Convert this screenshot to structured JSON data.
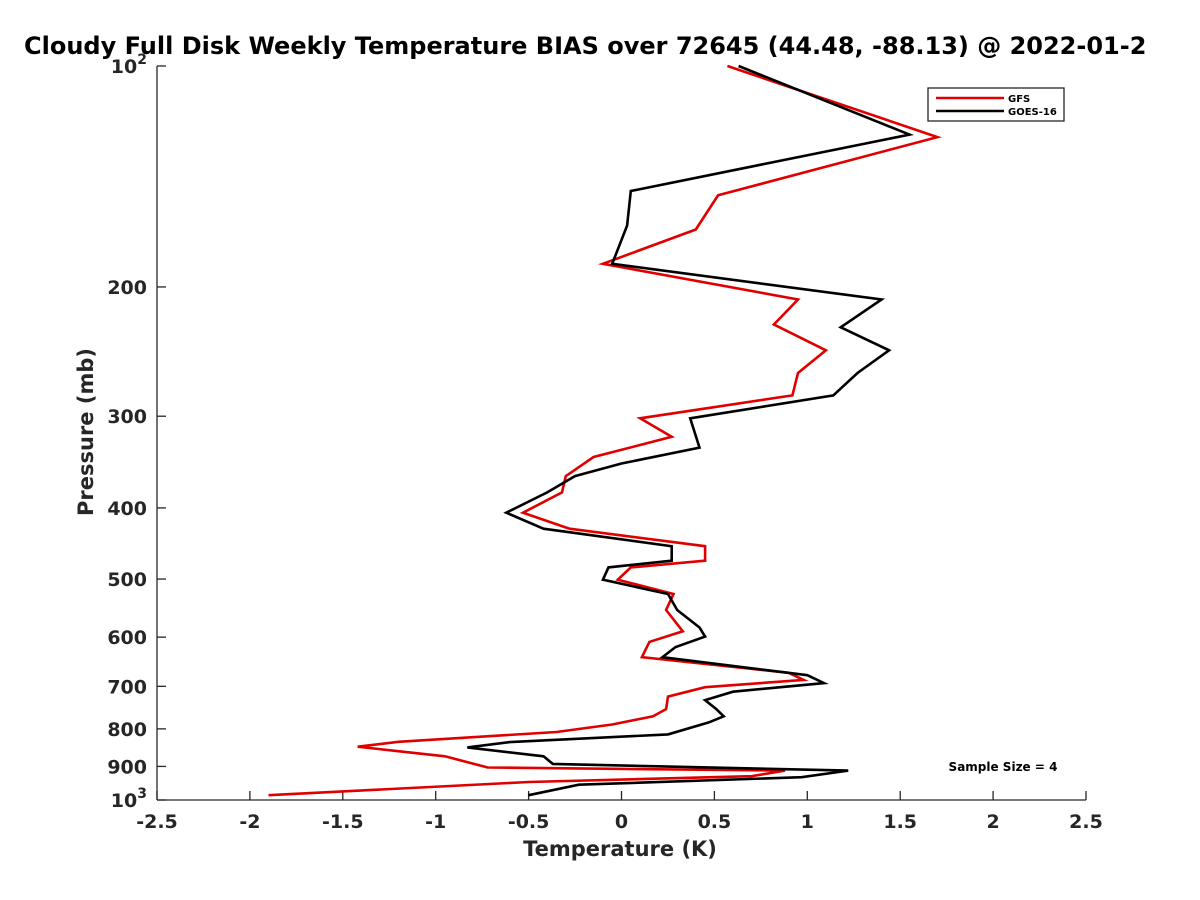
{
  "chart_data": {
    "type": "line",
    "title": "Cloudy Full Disk Weekly Temperature BIAS over 72645 (44.48, -88.13) @ 2022-01-2",
    "xlabel": "Temperature (K)",
    "ylabel": "Pressure (mb)",
    "xlim": [
      -2.5,
      2.5
    ],
    "ylim": [
      100,
      1000
    ],
    "yscale": "log",
    "y_reversed": true,
    "x_ticks": [
      "-2.5",
      "-2",
      "-1.5",
      "-1",
      "-0.5",
      "0",
      "0.5",
      "1",
      "1.5",
      "2",
      "2.5"
    ],
    "x_tick_values": [
      -2.5,
      -2,
      -1.5,
      -1,
      -0.5,
      0,
      0.5,
      1,
      1.5,
      2,
      2.5
    ],
    "y_ticks": [
      {
        "value": 100,
        "base": "10",
        "exp": "2"
      },
      {
        "value": 200,
        "label": "200"
      },
      {
        "value": 300,
        "label": "300"
      },
      {
        "value": 400,
        "label": "400"
      },
      {
        "value": 500,
        "label": "500"
      },
      {
        "value": 600,
        "label": "600"
      },
      {
        "value": 700,
        "label": "700"
      },
      {
        "value": 800,
        "label": "800"
      },
      {
        "value": 900,
        "label": "900"
      },
      {
        "value": 1000,
        "base": "10",
        "exp": "3"
      }
    ],
    "legend_position": "top-right",
    "grid": false,
    "series": [
      {
        "name": "GFS",
        "color": "#e00000",
        "points": [
          [
            0.57,
            100
          ],
          [
            1.7,
            125
          ],
          [
            0.52,
            150
          ],
          [
            0.4,
            167
          ],
          [
            -0.1,
            186
          ],
          [
            0.95,
            208
          ],
          [
            0.82,
            225
          ],
          [
            1.1,
            244
          ],
          [
            0.95,
            262
          ],
          [
            0.92,
            281
          ],
          [
            0.1,
            302
          ],
          [
            0.27,
            320
          ],
          [
            -0.15,
            341
          ],
          [
            -0.3,
            362
          ],
          [
            -0.32,
            381
          ],
          [
            -0.53,
            406
          ],
          [
            -0.28,
            427
          ],
          [
            0.45,
            451
          ],
          [
            0.45,
            472
          ],
          [
            0.05,
            482
          ],
          [
            -0.02,
            501
          ],
          [
            0.28,
            524
          ],
          [
            0.24,
            551
          ],
          [
            0.33,
            589
          ],
          [
            0.15,
            609
          ],
          [
            0.11,
            639
          ],
          [
            0.9,
            671
          ],
          [
            0.98,
            686
          ],
          [
            0.45,
            702
          ],
          [
            0.25,
            723
          ],
          [
            0.24,
            752
          ],
          [
            0.17,
            769
          ],
          [
            -0.05,
            789
          ],
          [
            -0.35,
            808
          ],
          [
            -1.2,
            833
          ],
          [
            -1.42,
            846
          ],
          [
            -0.95,
            872
          ],
          [
            -0.72,
            903
          ],
          [
            0.88,
            912
          ],
          [
            0.7,
            928
          ],
          [
            -0.5,
            945
          ],
          [
            -1.9,
            985
          ]
        ]
      },
      {
        "name": "GOES-16",
        "color": "#000000",
        "points": [
          [
            0.63,
            100
          ],
          [
            1.55,
            124
          ],
          [
            0.05,
            148
          ],
          [
            0.03,
            165
          ],
          [
            -0.05,
            186
          ],
          [
            1.4,
            208
          ],
          [
            1.18,
            227
          ],
          [
            1.44,
            244
          ],
          [
            1.27,
            262
          ],
          [
            1.14,
            281
          ],
          [
            0.37,
            302
          ],
          [
            0.42,
            331
          ],
          [
            0.0,
            348
          ],
          [
            -0.25,
            362
          ],
          [
            -0.4,
            381
          ],
          [
            -0.62,
            406
          ],
          [
            -0.42,
            427
          ],
          [
            0.27,
            451
          ],
          [
            0.27,
            472
          ],
          [
            -0.07,
            482
          ],
          [
            -0.1,
            501
          ],
          [
            0.25,
            524
          ],
          [
            0.3,
            551
          ],
          [
            0.42,
            582
          ],
          [
            0.45,
            599
          ],
          [
            0.29,
            619
          ],
          [
            0.22,
            639
          ],
          [
            1.0,
            676
          ],
          [
            1.09,
            693
          ],
          [
            0.6,
            712
          ],
          [
            0.45,
            731
          ],
          [
            0.51,
            752
          ],
          [
            0.55,
            769
          ],
          [
            0.47,
            784
          ],
          [
            0.25,
            814
          ],
          [
            -0.6,
            834
          ],
          [
            -0.83,
            848
          ],
          [
            -0.42,
            872
          ],
          [
            -0.37,
            893
          ],
          [
            1.22,
            912
          ],
          [
            0.97,
            931
          ],
          [
            -0.23,
            953
          ],
          [
            -0.5,
            985
          ]
        ]
      }
    ],
    "annotation": "Sample Size = 4"
  }
}
